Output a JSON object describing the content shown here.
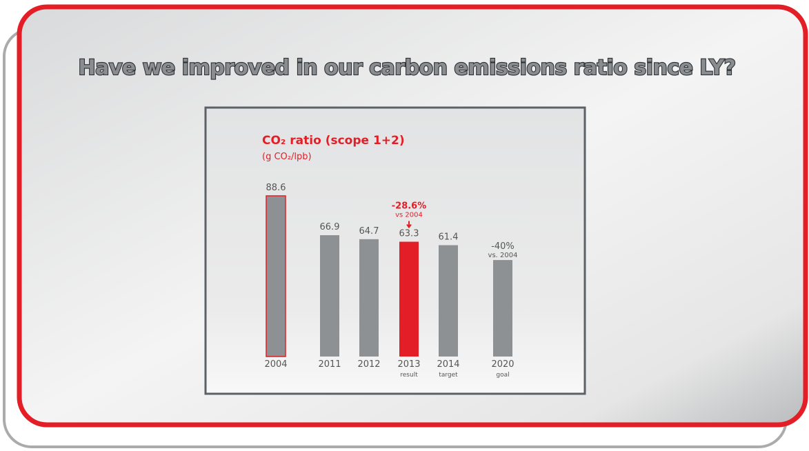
{
  "title": "Have we improved in our carbon emissions ratio since LY?",
  "chart_data": {
    "type": "bar",
    "title": "CO₂ ratio (scope 1+2)",
    "subtitle": "(g CO₂/lpb)",
    "categories": [
      "2004",
      "2011",
      "2012",
      "2013",
      "2014",
      "2020"
    ],
    "category_notes": [
      null,
      null,
      null,
      "result",
      "target",
      "goal"
    ],
    "values": [
      88.6,
      66.9,
      64.7,
      63.3,
      61.4,
      53.2
    ],
    "value_labels": [
      "88.6",
      "66.9",
      "64.7",
      "63.3",
      "61.4",
      null
    ],
    "annotations": [
      null,
      null,
      null,
      {
        "text": "-28.6%",
        "note": "vs 2004"
      },
      null,
      {
        "text": "-40%",
        "note": "vs. 2004"
      }
    ],
    "colors": [
      "#8e9193",
      "#8e9193",
      "#8e9193",
      "#e31e26",
      "#8e9193",
      "#8e9193"
    ],
    "edge_colors": [
      "#e31e26",
      null,
      null,
      null,
      null,
      null
    ],
    "ylim": [
      0,
      100
    ]
  }
}
